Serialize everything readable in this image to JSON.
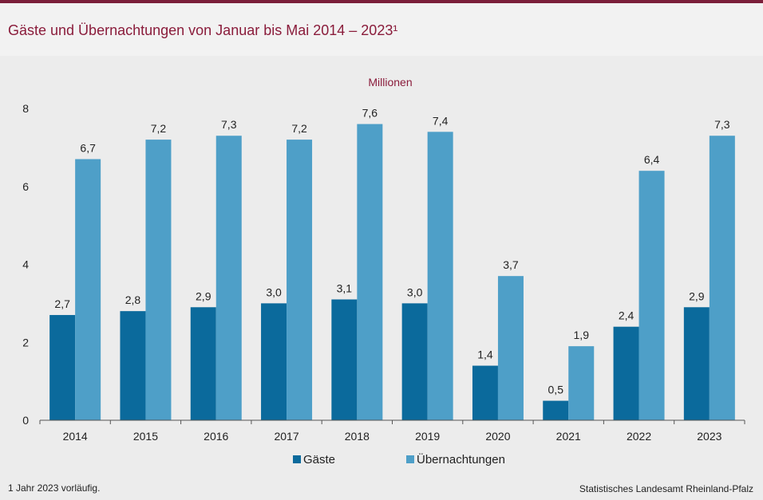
{
  "header": {
    "title": "Gäste und Übernachtungen von Januar bis Mai 2014 – 2023¹"
  },
  "chart_data": {
    "type": "bar",
    "title": "Gäste und Übernachtungen von Januar bis Mai 2014 – 2023¹",
    "ylabel": "Millionen",
    "xlabel": "",
    "ylim": [
      0,
      8
    ],
    "yticks": [
      0,
      2,
      4,
      6,
      8
    ],
    "grid": false,
    "legend_position": "bottom-center",
    "categories": [
      "2014",
      "2015",
      "2016",
      "2017",
      "2018",
      "2019",
      "2020",
      "2021",
      "2022",
      "2023"
    ],
    "series": [
      {
        "name": "Gäste",
        "color": "#0b6a9c",
        "values": [
          2.7,
          2.8,
          2.9,
          3.0,
          3.1,
          3.0,
          1.4,
          0.5,
          2.4,
          2.9
        ],
        "labels": [
          "2,7",
          "2,8",
          "2,9",
          "3,0",
          "3,1",
          "3,0",
          "1,4",
          "0,5",
          "2,4",
          "2,9"
        ]
      },
      {
        "name": "Übernachtungen",
        "color": "#4e9fc8",
        "values": [
          6.7,
          7.2,
          7.3,
          7.2,
          7.6,
          7.4,
          3.7,
          1.9,
          6.4,
          7.3
        ],
        "labels": [
          "6,7",
          "7,2",
          "7,3",
          "7,2",
          "7,6",
          "7,4",
          "3,7",
          "1,9",
          "6,4",
          "7,3"
        ]
      }
    ]
  },
  "footer": {
    "footnote": "1 Jahr 2023 vorläufig.",
    "source": "Statistisches Landesamt Rheinland-Pfalz"
  }
}
